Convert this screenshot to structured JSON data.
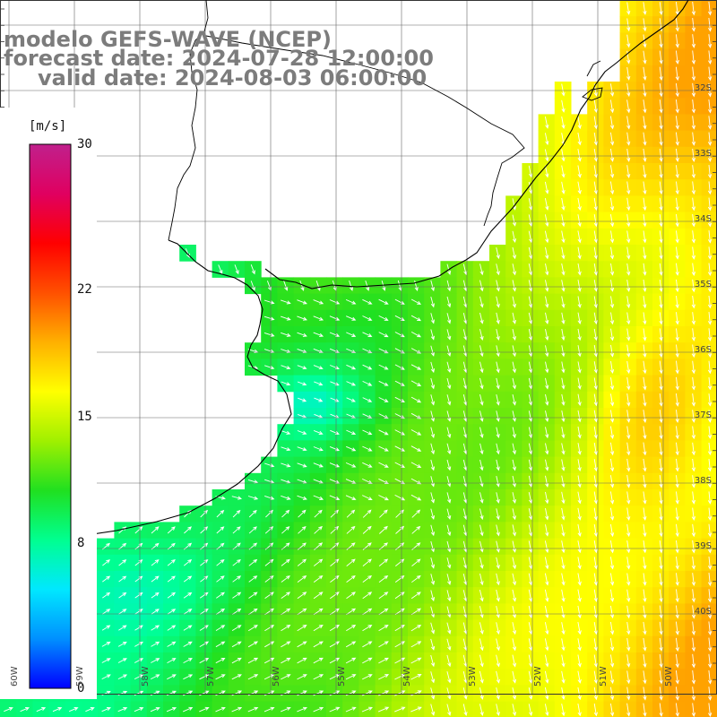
{
  "title": {
    "line1": "modelo GEFS-WAVE (NCEP)",
    "line2": "forecast date: 2024-07-28 12:00:00",
    "line3": "valid date: 2024-08-03 06:00:00"
  },
  "colorbar": {
    "unit": "[m/s]",
    "ticks": [
      {
        "value": 30,
        "label": "30"
      },
      {
        "value": 22,
        "label": "22"
      },
      {
        "value": 15,
        "label": "15"
      },
      {
        "value": 8,
        "label": "8"
      },
      {
        "value": 0,
        "label": "0"
      }
    ],
    "range": [
      0,
      30
    ],
    "colors": [
      "#0000ff",
      "#0090ff",
      "#00e8ff",
      "#00ff90",
      "#20e020",
      "#a0f000",
      "#ffff00",
      "#ffb000",
      "#ff5000",
      "#ff0000",
      "#e00060",
      "#c0208c"
    ]
  },
  "latitude_labels": [
    "32S",
    "33S",
    "34S",
    "35S",
    "36S",
    "37S",
    "38S",
    "39S",
    "40S"
  ],
  "longitude_labels": [
    "60W",
    "59W",
    "58W",
    "57W",
    "56W",
    "55W",
    "54W",
    "53W",
    "52W",
    "51W",
    "50W"
  ],
  "map": {
    "region": "Rio de la Plata / southern Brazil coast",
    "field": "wind speed with direction arrows"
  }
}
